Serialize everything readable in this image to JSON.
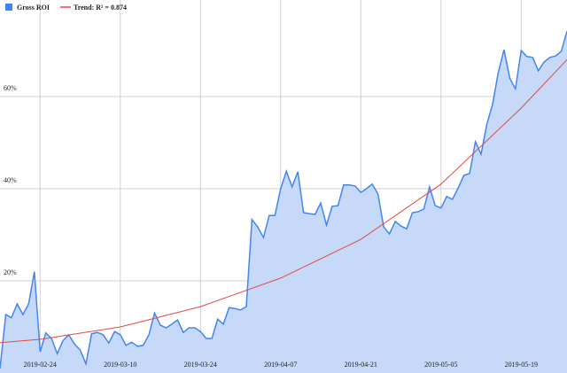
{
  "chart_data": {
    "type": "area",
    "xlim": [
      "2019-02-17",
      "2019-05-27"
    ],
    "xticks": [
      "2019-02-24",
      "2019-03-10",
      "2019-03-24",
      "2019-04-07",
      "2019-04-21",
      "2019-05-05",
      "2019-05-19"
    ],
    "ylim": [
      0,
      80
    ],
    "yticks": [
      {
        "value": 20,
        "label": "20%"
      },
      {
        "value": 40,
        "label": "40%"
      },
      {
        "value": 60,
        "label": "60%"
      }
    ],
    "grid": true,
    "legend": "top-left",
    "series": [
      {
        "name": "Gross ROI",
        "color": "#4285f4",
        "fill": "#c6d9f9",
        "x": [
          "2019-02-17",
          "2019-02-18",
          "2019-02-19",
          "2019-02-20",
          "2019-02-21",
          "2019-02-22",
          "2019-02-23",
          "2019-02-24",
          "2019-02-25",
          "2019-02-26",
          "2019-02-27",
          "2019-02-28",
          "2019-03-01",
          "2019-03-02",
          "2019-03-03",
          "2019-03-04",
          "2019-03-05",
          "2019-03-06",
          "2019-03-07",
          "2019-03-08",
          "2019-03-09",
          "2019-03-10",
          "2019-03-11",
          "2019-03-12",
          "2019-03-13",
          "2019-03-14",
          "2019-03-15",
          "2019-03-16",
          "2019-03-17",
          "2019-03-18",
          "2019-03-19",
          "2019-03-20",
          "2019-03-21",
          "2019-03-22",
          "2019-03-23",
          "2019-03-24",
          "2019-03-25",
          "2019-03-26",
          "2019-03-27",
          "2019-03-28",
          "2019-03-29",
          "2019-03-30",
          "2019-03-31",
          "2019-04-01",
          "2019-04-02",
          "2019-04-03",
          "2019-04-04",
          "2019-04-05",
          "2019-04-06",
          "2019-04-07",
          "2019-04-08",
          "2019-04-09",
          "2019-04-10",
          "2019-04-11",
          "2019-04-12",
          "2019-04-13",
          "2019-04-14",
          "2019-04-15",
          "2019-04-16",
          "2019-04-17",
          "2019-04-18",
          "2019-04-19",
          "2019-04-20",
          "2019-04-21",
          "2019-04-22",
          "2019-04-23",
          "2019-04-24",
          "2019-04-25",
          "2019-04-26",
          "2019-04-27",
          "2019-04-28",
          "2019-04-29",
          "2019-04-30",
          "2019-05-01",
          "2019-05-02",
          "2019-05-03",
          "2019-05-04",
          "2019-05-05",
          "2019-05-06",
          "2019-05-07",
          "2019-05-08",
          "2019-05-09",
          "2019-05-10",
          "2019-05-11",
          "2019-05-12",
          "2019-05-13",
          "2019-05-14",
          "2019-05-15",
          "2019-05-16",
          "2019-05-17",
          "2019-05-18",
          "2019-05-19",
          "2019-05-20",
          "2019-05-21",
          "2019-05-22",
          "2019-05-23",
          "2019-05-24",
          "2019-05-25",
          "2019-05-26",
          "2019-05-27"
        ],
        "values": [
          1,
          12.7,
          12,
          15,
          12.7,
          15,
          22,
          4.6,
          8.7,
          7.5,
          4.2,
          7,
          8.3,
          6.3,
          5,
          2,
          8.5,
          8.8,
          8.3,
          6.5,
          9,
          8.3,
          6,
          6.7,
          5.8,
          6,
          8.3,
          13,
          10.4,
          9.8,
          10.6,
          11.5,
          8.8,
          9.8,
          9.8,
          9,
          7.5,
          7.5,
          11.7,
          10.6,
          14.2,
          14,
          13.7,
          14.4,
          33.3,
          31.7,
          29.4,
          34.2,
          34.2,
          40,
          43.8,
          40.4,
          43.7,
          34.8,
          34.6,
          34.4,
          36.9,
          32.1,
          36.2,
          36.3,
          40.8,
          40.8,
          40.6,
          39.2,
          40,
          41,
          38.8,
          31.7,
          30.2,
          32.9,
          31.9,
          31.3,
          34.8,
          35,
          35.6,
          40.4,
          36.3,
          35.8,
          38.3,
          37.7,
          40.2,
          42.9,
          43.3,
          50.2,
          47.5,
          54,
          58.3,
          65.2,
          70.2,
          64,
          61.7,
          70,
          68.7,
          68.5,
          65.6,
          67.5,
          68.5,
          68.8,
          69.8,
          74.2
        ]
      },
      {
        "name": "Trend: R² = 0.874",
        "color": "#e8483f",
        "type": "line",
        "x": [
          "2019-02-17",
          "2019-02-24",
          "2019-03-10",
          "2019-03-24",
          "2019-04-07",
          "2019-04-21",
          "2019-05-05",
          "2019-05-19",
          "2019-05-27"
        ],
        "values": [
          6.6,
          7.3,
          10,
          14.4,
          20.6,
          29,
          41,
          57.5,
          68
        ]
      }
    ]
  }
}
